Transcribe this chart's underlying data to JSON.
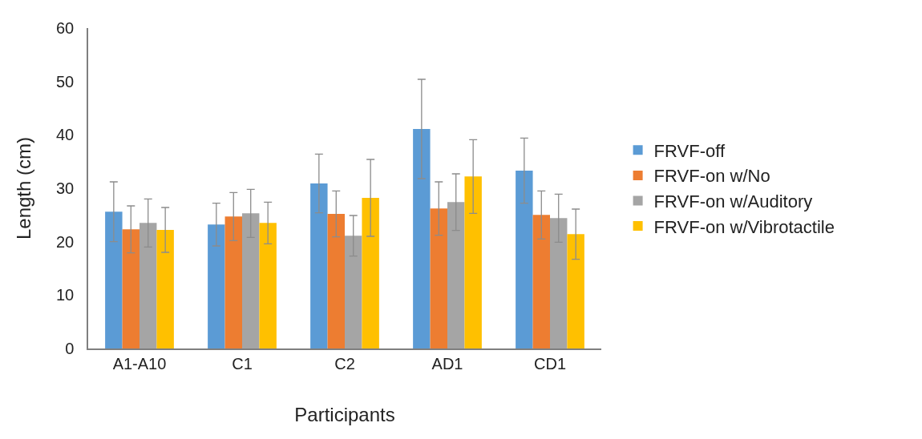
{
  "chart_data": {
    "type": "bar",
    "xlabel": "Participants",
    "ylabel": "Length (cm)",
    "categories": [
      "A1-A10",
      "C1",
      "C2",
      "AD1",
      "CD1"
    ],
    "series": [
      {
        "name": "FRVF-off",
        "color": "#5b9bd5",
        "values": [
          25.6,
          23.2,
          30.9,
          41.1,
          33.3
        ],
        "errors": [
          5.6,
          4.0,
          5.5,
          9.3,
          6.1
        ]
      },
      {
        "name": "FRVF-on w/No",
        "color": "#ed7d31",
        "values": [
          22.3,
          24.7,
          25.2,
          26.2,
          25.0
        ],
        "errors": [
          4.4,
          4.5,
          4.3,
          5.0,
          4.5
        ]
      },
      {
        "name": "FRVF-on w/Auditory",
        "color": "#a5a5a5",
        "values": [
          23.5,
          25.3,
          21.1,
          27.4,
          24.4
        ],
        "errors": [
          4.5,
          4.5,
          3.8,
          5.3,
          4.5
        ]
      },
      {
        "name": "FRVF-on w/Vibrotactile",
        "color": "#ffc000",
        "values": [
          22.2,
          23.5,
          28.2,
          32.2,
          21.4
        ],
        "errors": [
          4.2,
          3.9,
          7.2,
          6.9,
          4.7
        ]
      }
    ],
    "ylim": [
      0,
      60
    ],
    "yticks": [
      0,
      10,
      20,
      30,
      40,
      50,
      60
    ],
    "legend": "right"
  }
}
